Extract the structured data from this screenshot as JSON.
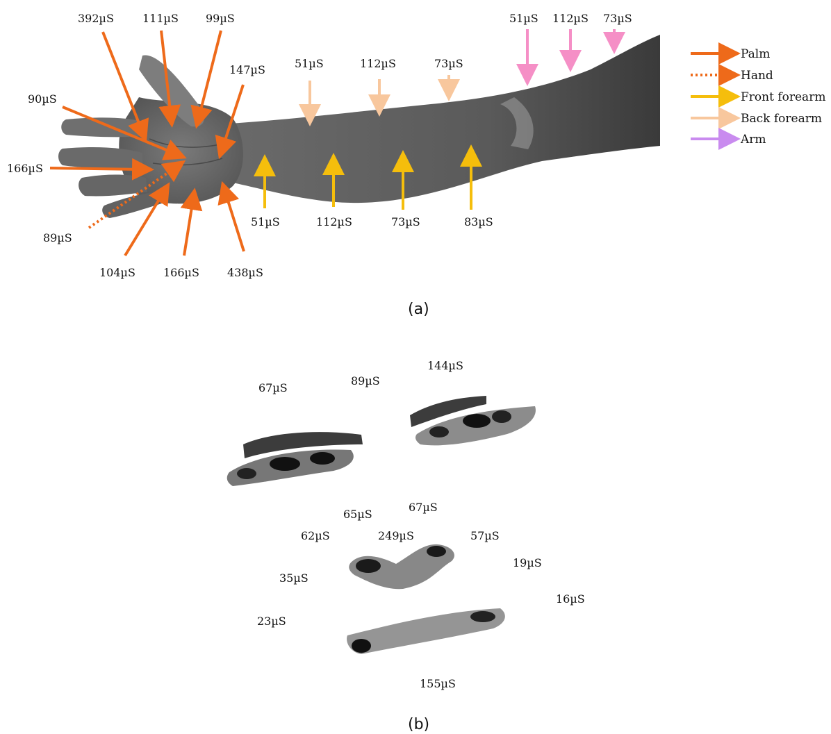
{
  "colors": {
    "palm": "#EE6A1A",
    "hand": "#EE6A1A",
    "front_forearm": "#F5BE0C",
    "back_forearm": "#F8C79D",
    "arm_arrow": "#F58FC6",
    "arm_legend": "#C98BEF"
  },
  "legend": [
    {
      "label": "Palm",
      "color_key": "palm",
      "style": "solid"
    },
    {
      "label": "Hand",
      "color_key": "hand",
      "style": "dotted"
    },
    {
      "label": "Front forearm",
      "color_key": "front_forearm",
      "style": "solid"
    },
    {
      "label": "Back forearm",
      "color_key": "back_forearm",
      "style": "solid"
    },
    {
      "label": "Arm",
      "color_key": "arm_legend",
      "style": "solid"
    }
  ],
  "panel_a": {
    "caption": "(a)",
    "palm_labels": [
      "392µS",
      "111µS",
      "99µS",
      "147µS",
      "90µS",
      "166µS",
      "104µS",
      "166µS",
      "438µS"
    ],
    "hand_labels": [
      "89µS"
    ],
    "back_forearm_labels": [
      "51µS",
      "112µS",
      "73µS"
    ],
    "front_forearm_labels": [
      "51µS",
      "112µS",
      "73µS",
      "83µS"
    ],
    "arm_labels": [
      "51µS",
      "112µS",
      "73µS"
    ]
  },
  "panel_b": {
    "caption": "(b)",
    "labels": [
      "67µS",
      "89µS",
      "144µS",
      "65µS",
      "67µS",
      "62µS",
      "249µS",
      "57µS",
      "35µS",
      "19µS",
      "16µS",
      "23µS",
      "155µS"
    ]
  }
}
